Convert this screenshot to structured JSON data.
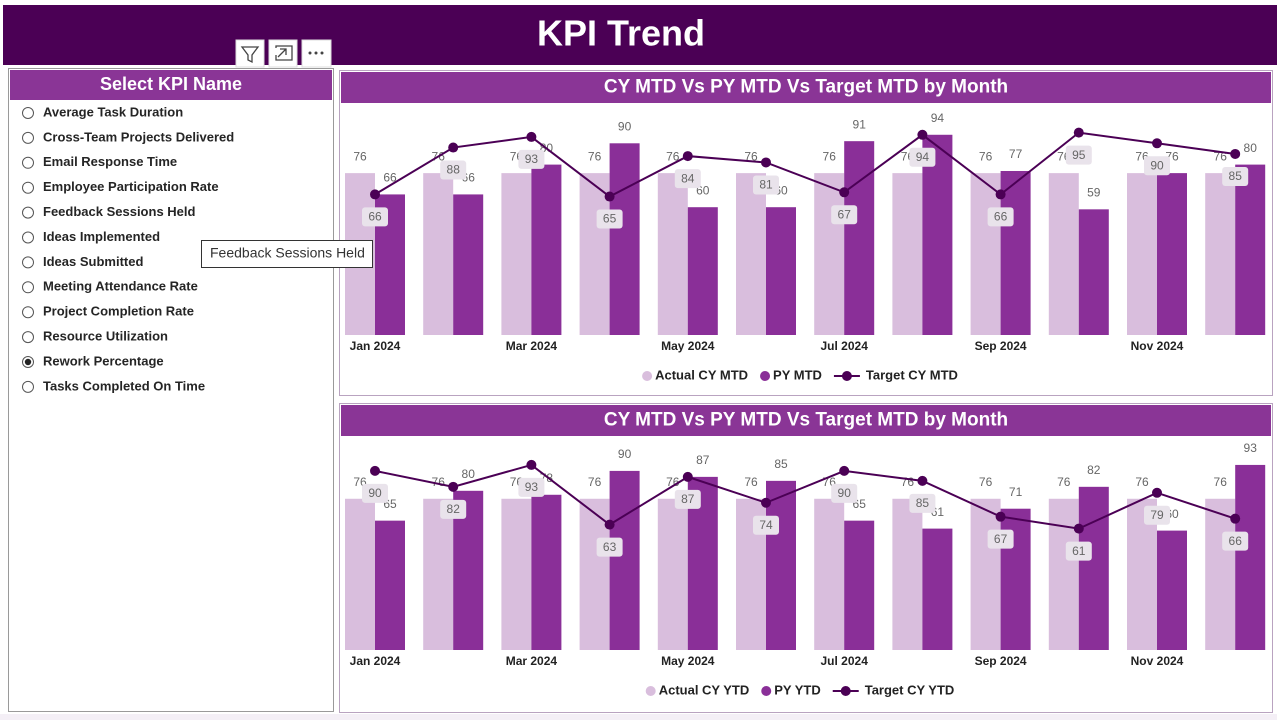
{
  "header": {
    "title": "KPI Trend"
  },
  "slicer": {
    "title": "Select KPI Name",
    "items": [
      "Average Task Duration",
      "Cross-Team Projects Delivered",
      "Email Response Time",
      "Employee Participation Rate",
      "Feedback Sessions Held",
      "Ideas Implemented",
      "Ideas Submitted",
      "Meeting Attendance Rate",
      "Project Completion Rate",
      "Resource Utilization",
      "Rework Percentage",
      "Tasks Completed On Time"
    ],
    "selected": "Rework Percentage"
  },
  "tooltip": "Feedback Sessions Held",
  "chart_data": [
    {
      "type": "combo",
      "title": "CY MTD Vs PY MTD Vs Target MTD by Month",
      "categories": [
        "Jan 2024",
        null,
        "Mar 2024",
        null,
        "May 2024",
        null,
        "Jul 2024",
        null,
        "Sep 2024",
        null,
        "Nov 2024",
        null
      ],
      "ylim": [
        0,
        100
      ],
      "series": [
        {
          "name": "Actual CY MTD",
          "type": "bar",
          "color": "#d9bedd",
          "values": [
            76,
            76,
            76,
            76,
            76,
            76,
            76,
            76,
            76,
            76,
            76,
            76
          ]
        },
        {
          "name": "PY MTD",
          "type": "bar",
          "color": "#8a2f98",
          "values": [
            66,
            66,
            80,
            90,
            60,
            60,
            91,
            94,
            77,
            59,
            76,
            80
          ]
        },
        {
          "name": "Target CY MTD",
          "type": "line",
          "color": "#4b0055",
          "values": [
            66,
            88,
            93,
            65,
            84,
            81,
            67,
            94,
            66,
            95,
            90,
            85
          ]
        }
      ]
    },
    {
      "type": "combo",
      "title": "CY MTD Vs PY MTD Vs Target MTD by Month",
      "categories": [
        "Jan 2024",
        null,
        "Mar 2024",
        null,
        "May 2024",
        null,
        "Jul 2024",
        null,
        "Sep 2024",
        null,
        "Nov 2024",
        null
      ],
      "ylim": [
        0,
        100
      ],
      "series": [
        {
          "name": "Actual CY YTD",
          "type": "bar",
          "color": "#d9bedd",
          "values": [
            76,
            76,
            76,
            76,
            76,
            76,
            76,
            76,
            76,
            76,
            76,
            76
          ]
        },
        {
          "name": "PY YTD",
          "type": "bar",
          "color": "#8a2f98",
          "values": [
            65,
            80,
            78,
            90,
            87,
            85,
            65,
            61,
            71,
            82,
            60,
            93
          ]
        },
        {
          "name": "Target CY YTD",
          "type": "line",
          "color": "#4b0055",
          "values": [
            90,
            82,
            93,
            63,
            87,
            74,
            90,
            85,
            67,
            61,
            79,
            66
          ]
        }
      ]
    }
  ]
}
